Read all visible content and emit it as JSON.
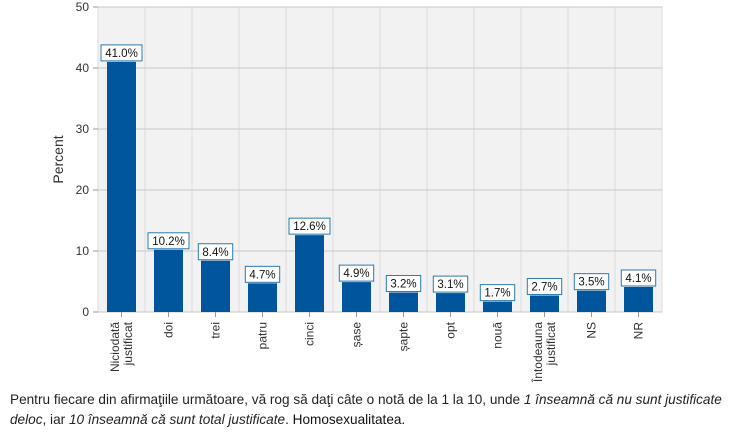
{
  "chart_data": {
    "type": "bar",
    "ylabel": "Percent",
    "ylim": [
      0,
      50
    ],
    "yticks": [
      0,
      10,
      20,
      30,
      40,
      50
    ],
    "grid": true,
    "bar_color": "#00569c",
    "categories": [
      [
        "Niciodată",
        "justificat"
      ],
      [
        "doi"
      ],
      [
        "trei"
      ],
      [
        "patru"
      ],
      [
        "cinci"
      ],
      [
        "șase"
      ],
      [
        "șapte"
      ],
      [
        "opt"
      ],
      [
        "nouă"
      ],
      [
        "Întodeauna",
        "justificat"
      ],
      [
        "NS"
      ],
      [
        "NR"
      ]
    ],
    "values": [
      41.0,
      10.2,
      8.4,
      4.7,
      12.6,
      4.9,
      3.2,
      3.1,
      1.7,
      2.7,
      3.5,
      4.1
    ],
    "data_labels": [
      "41.0%",
      "10.2%",
      "8.4%",
      "4.7%",
      "12.6%",
      "4.9%",
      "3.2%",
      "3.1%",
      "1.7%",
      "2.7%",
      "3.5%",
      "4.1%"
    ]
  },
  "caption": {
    "part1": "Pentru fiecare din afirmaţiile următoare, vă rog să daţi câte o notă de la 1 la 10, unde ",
    "part2": "1 înseamnă că nu sunt justificate deloc",
    "part3": ", iar ",
    "part4": "10 înseamnă că sunt total justificate",
    "part5": ". ",
    "part6": "Homosexualitatea."
  }
}
